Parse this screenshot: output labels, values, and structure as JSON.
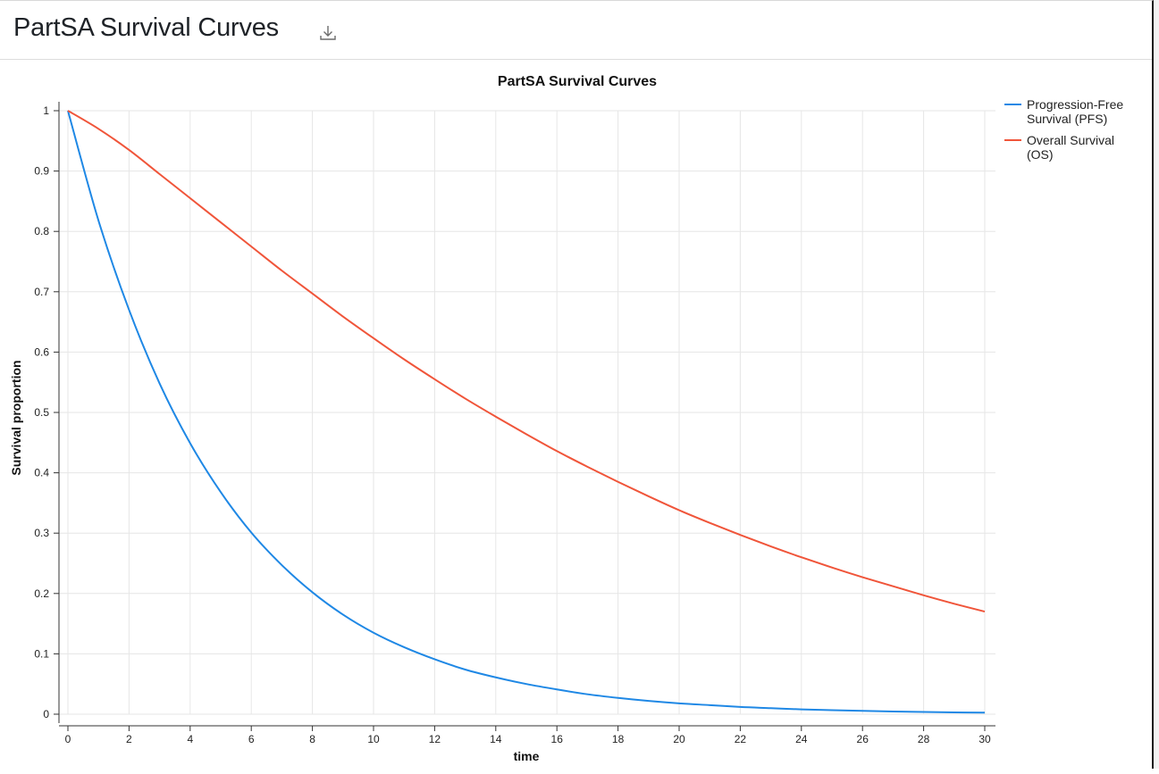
{
  "page": {
    "title": "PartSA Survival Curves",
    "download_icon": "download-icon"
  },
  "chart_data": {
    "type": "line",
    "title": "PartSA Survival Curves",
    "xlabel": "time",
    "ylabel": "Survival proportion",
    "xlim": [
      0,
      30
    ],
    "ylim": [
      0,
      1
    ],
    "x_ticks": [
      0,
      2,
      4,
      6,
      8,
      10,
      12,
      14,
      16,
      18,
      20,
      22,
      24,
      26,
      28,
      30
    ],
    "y_ticks": [
      0,
      0.1,
      0.2,
      0.3,
      0.4,
      0.5,
      0.6,
      0.7,
      0.8,
      0.9,
      1
    ],
    "grid": true,
    "legend_position": "top-right outside",
    "x": [
      0,
      1,
      2,
      3,
      4,
      5,
      6,
      7,
      8,
      9,
      10,
      11,
      12,
      13,
      14,
      15,
      16,
      17,
      18,
      19,
      20,
      21,
      22,
      23,
      24,
      25,
      26,
      27,
      28,
      29,
      30
    ],
    "series": [
      {
        "name": "Progression-Free Survival (PFS)",
        "color": "#1f88e5",
        "values": [
          1.0,
          0.818,
          0.67,
          0.548,
          0.449,
          0.368,
          0.301,
          0.247,
          0.202,
          0.165,
          0.135,
          0.111,
          0.091,
          0.074,
          0.061,
          0.05,
          0.041,
          0.033,
          0.027,
          0.022,
          0.018,
          0.015,
          0.012,
          0.01,
          0.008,
          0.0067,
          0.0055,
          0.0045,
          0.0037,
          0.003,
          0.0025
        ]
      },
      {
        "name": "Overall Survival (OS)",
        "color": "#f0553a",
        "values": [
          1.0,
          0.97,
          0.935,
          0.895,
          0.855,
          0.815,
          0.775,
          0.735,
          0.697,
          0.659,
          0.623,
          0.588,
          0.555,
          0.523,
          0.493,
          0.464,
          0.436,
          0.41,
          0.385,
          0.361,
          0.338,
          0.317,
          0.297,
          0.278,
          0.26,
          0.243,
          0.227,
          0.212,
          0.197,
          0.183,
          0.17
        ]
      }
    ],
    "legend_lines": [
      [
        "Progression-Free",
        "Survival (PFS)"
      ],
      [
        "Overall Survival",
        "(OS)"
      ]
    ]
  }
}
